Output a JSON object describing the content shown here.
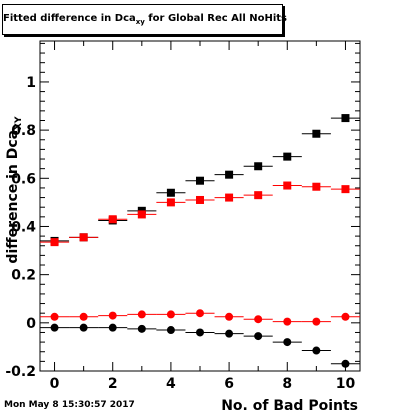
{
  "chart_data": {
    "type": "scatter",
    "title": {
      "prefix": "Fitted difference in Dca",
      "subscript": "xy",
      "suffix": " for Global Rec All NoHits"
    },
    "xlabel": "No. of Bad Points",
    "ylabel": {
      "text": "difference in Dca",
      "subscript": "XY"
    },
    "xlim": [
      -0.5,
      10.5
    ],
    "ylim": [
      -0.2,
      1.17
    ],
    "xticks": [
      0,
      2,
      4,
      6,
      8,
      10
    ],
    "yticks": [
      -0.2,
      0,
      0.2,
      0.4,
      0.6,
      0.8,
      1
    ],
    "grid": false,
    "legend": "none",
    "x": [
      0,
      1,
      2,
      3,
      4,
      5,
      6,
      7,
      8,
      9,
      10
    ],
    "series": [
      {
        "marker": "square",
        "color": "#000000",
        "values": [
          0.34,
          0.355,
          0.425,
          0.465,
          0.54,
          0.59,
          0.615,
          0.65,
          0.69,
          0.785,
          0.85
        ]
      },
      {
        "marker": "square",
        "color": "#ff0000",
        "values": [
          0.335,
          0.355,
          0.43,
          0.45,
          0.5,
          0.51,
          0.52,
          0.53,
          0.57,
          0.565,
          0.555
        ]
      },
      {
        "marker": "circle",
        "color": "#ff0000",
        "values": [
          0.025,
          0.025,
          0.03,
          0.035,
          0.035,
          0.04,
          0.025,
          0.015,
          0.005,
          0.005,
          0.025
        ]
      },
      {
        "marker": "circle",
        "color": "#000000",
        "values": [
          -0.02,
          -0.02,
          -0.02,
          -0.025,
          -0.03,
          -0.04,
          -0.045,
          -0.055,
          -0.08,
          -0.115,
          -0.17
        ]
      }
    ]
  },
  "timestamp": "Mon May  8 15:30:57 2017"
}
